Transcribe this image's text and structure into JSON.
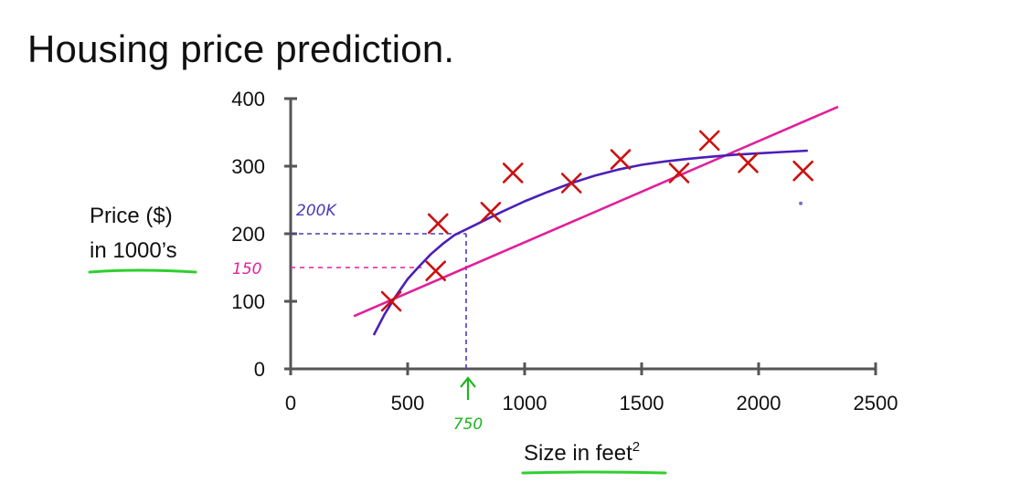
{
  "title": "Housing price prediction.",
  "chart_data": {
    "type": "scatter",
    "xlabel": "Size in feet",
    "xlabel_sup": "2",
    "ylabel_line1": "Price ($)",
    "ylabel_line2": "in 1000’s",
    "xlim": [
      0,
      2500
    ],
    "ylim": [
      0,
      400
    ],
    "xticks": [
      0,
      500,
      1000,
      1500,
      2000,
      2500
    ],
    "yticks": [
      0,
      100,
      200,
      300,
      400
    ],
    "grid": false,
    "points": [
      {
        "x": 430,
        "y": 100
      },
      {
        "x": 620,
        "y": 145
      },
      {
        "x": 630,
        "y": 215
      },
      {
        "x": 855,
        "y": 232
      },
      {
        "x": 950,
        "y": 290
      },
      {
        "x": 1200,
        "y": 275
      },
      {
        "x": 1410,
        "y": 310
      },
      {
        "x": 1660,
        "y": 290
      },
      {
        "x": 1790,
        "y": 338
      },
      {
        "x": 1955,
        "y": 305
      },
      {
        "x": 2190,
        "y": 293
      }
    ],
    "fits": [
      {
        "kind": "linear",
        "color": "#e0209a",
        "x": [
          270,
          2340
        ],
        "y": [
          78,
          388
        ]
      },
      {
        "kind": "quadratic",
        "color": "#4a1fb8",
        "x": [
          355,
          400,
          450,
          500,
          550,
          600,
          650,
          700,
          800,
          900,
          1000,
          1100,
          1200,
          1300,
          1400,
          1500,
          1600,
          1700,
          1800,
          1900,
          2000,
          2100,
          2210
        ],
        "y": [
          50,
          80,
          108,
          133,
          152,
          170,
          185,
          198,
          215,
          232,
          248,
          262,
          275,
          286,
          295,
          302,
          307,
          311,
          314,
          317,
          319,
          321,
          323
        ]
      }
    ],
    "annotations": {
      "x_marker": {
        "x": 750,
        "label": "750",
        "color": "#1db51d"
      },
      "y_marker_purple": {
        "y": 200,
        "label": "200K",
        "color": "#4a3ab5"
      },
      "y_marker_pink": {
        "y": 150,
        "label": "150",
        "color": "#e0209a"
      }
    },
    "marker_color": "#cc1010",
    "axis_color": "#555555",
    "underline_color": "#2fcf2f"
  }
}
